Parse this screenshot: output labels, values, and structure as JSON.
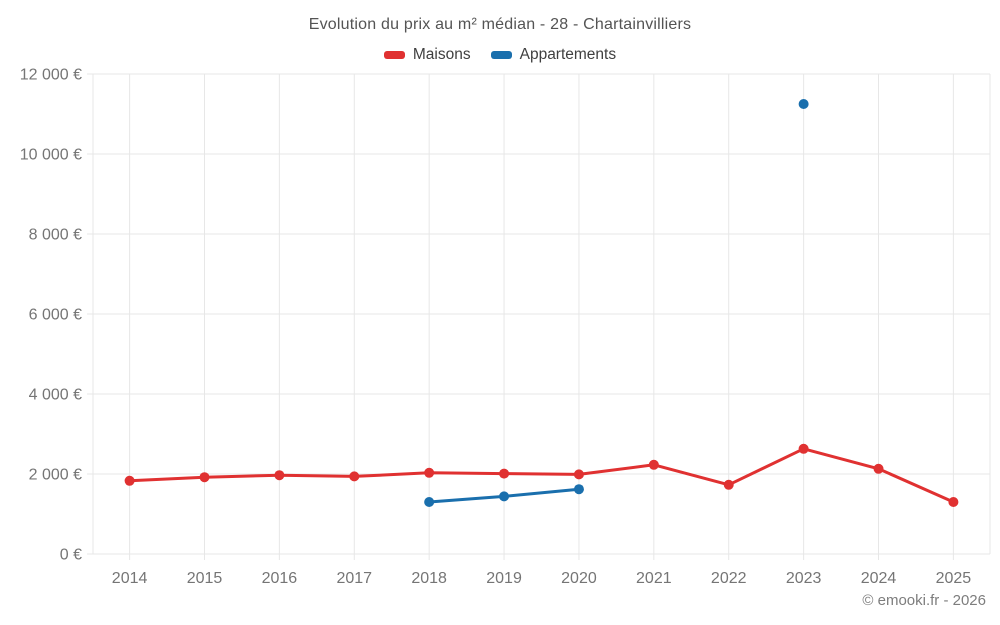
{
  "title": "Evolution du prix au m² médian - 28 - Chartainvilliers",
  "footer": {
    "copyright": "© emooki.fr - 2026"
  },
  "chart_data": {
    "type": "line",
    "title": "Evolution du prix au m² médian - 28 - Chartainvilliers",
    "categories": [
      "2014",
      "2015",
      "2016",
      "2017",
      "2018",
      "2019",
      "2020",
      "2021",
      "2022",
      "2023",
      "2024",
      "2025"
    ],
    "series": [
      {
        "name": "Maisons",
        "color": "#e03131",
        "values": [
          1830,
          1920,
          1970,
          1940,
          2030,
          2010,
          1990,
          2230,
          1730,
          2630,
          2130,
          1300
        ]
      },
      {
        "name": "Appartements",
        "color": "#1a6fad",
        "values": [
          null,
          null,
          null,
          null,
          1300,
          1440,
          1620,
          null,
          null,
          11250,
          null,
          null
        ]
      }
    ],
    "xlabel": "",
    "ylabel": "",
    "ylim": [
      0,
      12000
    ],
    "ytick_step": 2000,
    "ytick_labels": [
      "0 €",
      "2 000 €",
      "4 000 €",
      "6 000 €",
      "8 000 €",
      "10 000 €",
      "12 000 €"
    ],
    "grid": true,
    "legend_position": "top",
    "grid_color": "#e7e7e7",
    "tick_text_color": "#757575"
  }
}
